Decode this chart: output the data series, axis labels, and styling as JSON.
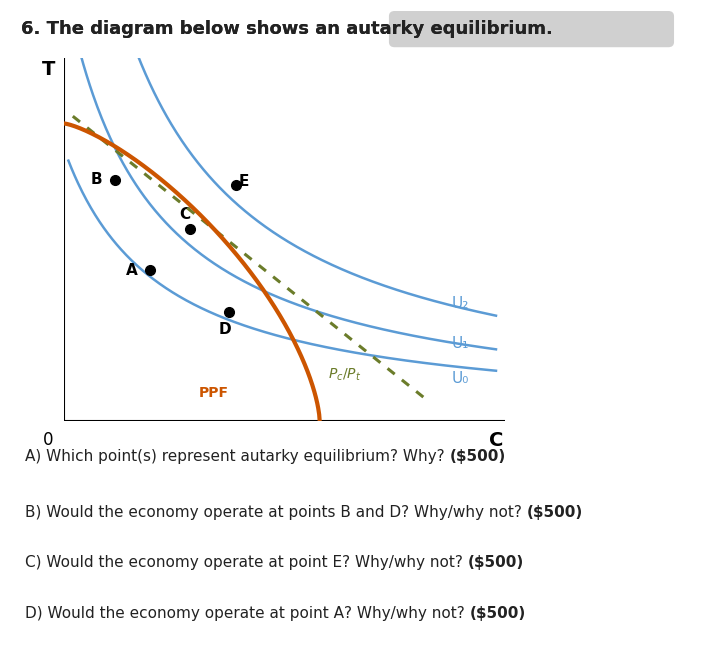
{
  "bg_color": "#ffffff",
  "title_text": "6. The diagram below shows an autarky equilibrium.",
  "title_prefix": "6. The diagram below shows an ",
  "title_suffix": "autarky equilibrium.",
  "xlabel": "C",
  "ylabel": "T",
  "origin_label": "0",
  "ppf_color": "#cc5500",
  "ppf_label": "PPF",
  "price_line_color": "#6b7c2a",
  "price_label": "P_c/P_t",
  "u_color": "#5b9bd5",
  "u_labels": [
    "U₂",
    "U₁",
    "U₀"
  ],
  "point_B": [
    0.115,
    0.665
  ],
  "point_C": [
    0.285,
    0.53
  ],
  "point_A": [
    0.195,
    0.415
  ],
  "point_D": [
    0.375,
    0.3
  ],
  "point_E": [
    0.39,
    0.65
  ],
  "questions": [
    [
      "A) Which point(s) represent autarky equilibrium? Why? ",
      "($500)"
    ],
    [
      "B) Would the economy operate at points B and D? Why/why not? ",
      "($500)"
    ],
    [
      "C) Would the economy operate at point E? Why/why not? ",
      "($500)"
    ],
    [
      "D) Would the economy operate at point A? Why/why not? ",
      "($500)"
    ]
  ]
}
